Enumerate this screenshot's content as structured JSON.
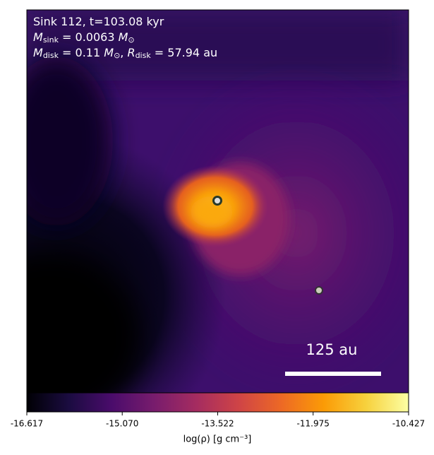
{
  "chart_data": {
    "type": "image",
    "annotations": [
      [
        "Sink 112, t=103.08 kyr"
      ],
      [
        "M",
        "sink",
        " = 0.0063 ",
        "M",
        "⊙"
      ],
      [
        "M",
        "disk",
        " = 0.11 ",
        "M",
        "⊙",
        ", ",
        "R",
        "disk",
        " = 57.94 au"
      ]
    ],
    "scale_bar": "125 au",
    "colorbar": {
      "label": "log(ρ) [g cm⁻³]",
      "clim": [
        -16.617,
        -10.427
      ],
      "ticks": [
        -16.617,
        {
          "value": -15.07,
          "label": "-15.070"
        },
        -13.522,
        -11.975,
        -10.427
      ],
      "colormap": [
        "#000004",
        "#1b0c41",
        "#4a0c6b",
        "#781c6d",
        "#a52c60",
        "#cf4446",
        "#ed6925",
        "#fb9b06",
        "#f7d13d",
        "#fcffa4"
      ]
    }
  }
}
